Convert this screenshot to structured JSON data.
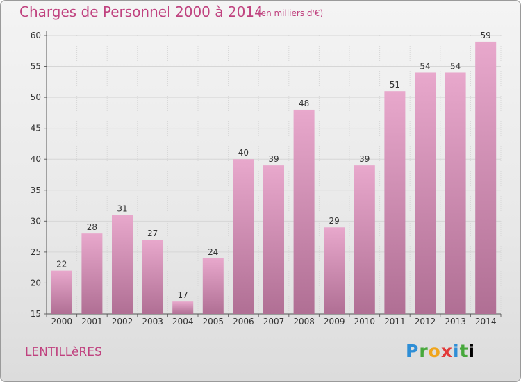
{
  "title": "Charges de Personnel 2000 à 2014",
  "subtitle": "(en milliers d'€)",
  "commune": "LENTILLèRES",
  "logo": {
    "text": "Proxiti",
    "letters": [
      "P",
      "r",
      "o",
      "x",
      "i",
      "t",
      "i"
    ]
  },
  "colors": {
    "title": "#c0427f",
    "bar_top": "#e8a8cc",
    "bar_bottom": "#b06f94",
    "grid": "#d6d6d6"
  },
  "chart_data": {
    "type": "bar",
    "categories": [
      "2000",
      "2001",
      "2002",
      "2003",
      "2004",
      "2005",
      "2006",
      "2007",
      "2008",
      "2009",
      "2010",
      "2011",
      "2012",
      "2013",
      "2014"
    ],
    "values": [
      22,
      28,
      31,
      27,
      17,
      24,
      40,
      39,
      48,
      29,
      39,
      51,
      54,
      54,
      59
    ],
    "ylim": [
      15,
      60
    ],
    "yticks": [
      15,
      20,
      25,
      30,
      35,
      40,
      45,
      50,
      55,
      60
    ],
    "xlabel": "",
    "ylabel": "",
    "grid": true,
    "data_labels": true
  }
}
